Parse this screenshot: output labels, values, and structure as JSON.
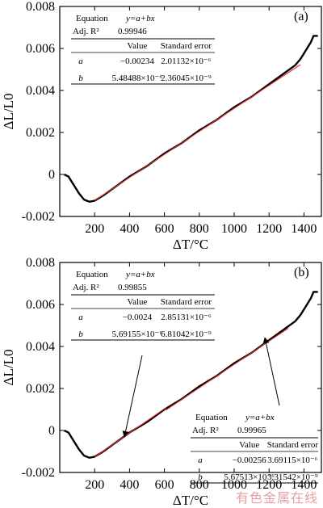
{
  "chart_data": [
    {
      "type": "line",
      "panel_label": "(a)",
      "xlabel": "ΔT/°C",
      "ylabel": "ΔL/L0",
      "xlim": [
        0,
        1500
      ],
      "ylim": [
        -0.002,
        0.008
      ],
      "xticks": [
        200,
        400,
        600,
        800,
        1000,
        1200,
        1400
      ],
      "yticks": [
        -0.002,
        0,
        0.002,
        0.004,
        0.006,
        0.008
      ],
      "ytick_labels": [
        "-0.002",
        "0",
        "0.002",
        "0.004",
        "0.006",
        "0.008"
      ],
      "series": [
        {
          "color": "#000000",
          "x": [
            25,
            50,
            80,
            110,
            140,
            170,
            200,
            250,
            300,
            400,
            500,
            600,
            700,
            800,
            900,
            1000,
            1100,
            1200,
            1300,
            1350,
            1380,
            1410,
            1440,
            1455,
            1465,
            1480
          ],
          "y": [
            0.0,
            -0.0001,
            -0.0005,
            -0.0009,
            -0.0012,
            -0.0013,
            -0.00125,
            -0.001,
            -0.0007,
            -0.0001,
            0.0004,
            0.001,
            0.0015,
            0.0021,
            0.0026,
            0.0032,
            0.0037,
            0.0043,
            0.0049,
            0.0052,
            0.0055,
            0.0059,
            0.0063,
            0.0066,
            0.0066,
            0.0066
          ]
        },
        {
          "color": "#e03030",
          "x": [
            200,
            1380
          ],
          "y": [
            -0.00124,
            0.00523
          ]
        }
      ],
      "fit_table": {
        "equation_label": "Equation",
        "equation": "y=a+bx",
        "adjr2_label": "Adj. R²",
        "adjr2": "0.99946",
        "headers": [
          "Value",
          "Standard error"
        ],
        "rows": [
          {
            "param": "a",
            "value": "−0.00234",
            "error": "2.01132×10⁻⁶"
          },
          {
            "param": "b",
            "value": "5.48488×10⁻⁶",
            "error": "2.36045×10⁻⁹"
          }
        ]
      }
    },
    {
      "type": "line",
      "panel_label": "(b)",
      "xlabel": "ΔT/°C",
      "ylabel": "ΔL/L0",
      "xlim": [
        0,
        1500
      ],
      "ylim": [
        -0.002,
        0.008
      ],
      "xticks": [
        200,
        400,
        600,
        800,
        1000,
        1200,
        1400
      ],
      "yticks": [
        -0.002,
        0,
        0.002,
        0.004,
        0.006,
        0.008
      ],
      "ytick_labels": [
        "-0.002",
        "0",
        "0.002",
        "0.004",
        "0.006",
        "0.008"
      ],
      "series": [
        {
          "color": "#000000",
          "x": [
            25,
            50,
            80,
            110,
            140,
            170,
            200,
            250,
            300,
            400,
            500,
            600,
            700,
            800,
            900,
            1000,
            1100,
            1200,
            1300,
            1350,
            1380,
            1410,
            1440,
            1455,
            1465,
            1480
          ],
          "y": [
            0.0,
            -0.0001,
            -0.0005,
            -0.0009,
            -0.0012,
            -0.0013,
            -0.00125,
            -0.001,
            -0.0007,
            -0.0001,
            0.0004,
            0.001,
            0.0015,
            0.0021,
            0.0026,
            0.0032,
            0.0037,
            0.0043,
            0.0049,
            0.0052,
            0.0055,
            0.0059,
            0.0063,
            0.0066,
            0.0066,
            0.0066
          ]
        },
        {
          "color": "#e03030",
          "x": [
            200,
            610
          ],
          "y": [
            -0.00126,
            0.00109
          ]
        },
        {
          "color": "#e03030",
          "x": [
            610,
            1310
          ],
          "y": [
            0.00098,
            0.00487
          ]
        }
      ],
      "fit_tables": [
        {
          "equation_label": "Equation",
          "equation": "y=a+bx",
          "adjr2_label": "Adj. R²",
          "adjr2": "0.99855",
          "headers": [
            "Value",
            "Standard error"
          ],
          "rows": [
            {
              "param": "a",
              "value": "−0.0024",
              "error": "2.85131×10⁻⁶"
            },
            {
              "param": "b",
              "value": "5.69155×10⁻⁶",
              "error": "6.81042×10⁻⁹"
            }
          ]
        },
        {
          "equation_label": "Equation",
          "equation": "y=a+bx",
          "adjr2_label": "Adj. R²",
          "adjr2": "0.99965",
          "headers": [
            "Value",
            "Standard error"
          ],
          "rows": [
            {
              "param": "a",
              "value": "−0.00256",
              "error": "3.69115×10⁻⁶"
            },
            {
              "param": "b",
              "value": "5.67513×10⁻⁶",
              "error": "3.31542×10⁻⁹"
            }
          ]
        }
      ]
    }
  ],
  "watermark": "有色金属在线"
}
